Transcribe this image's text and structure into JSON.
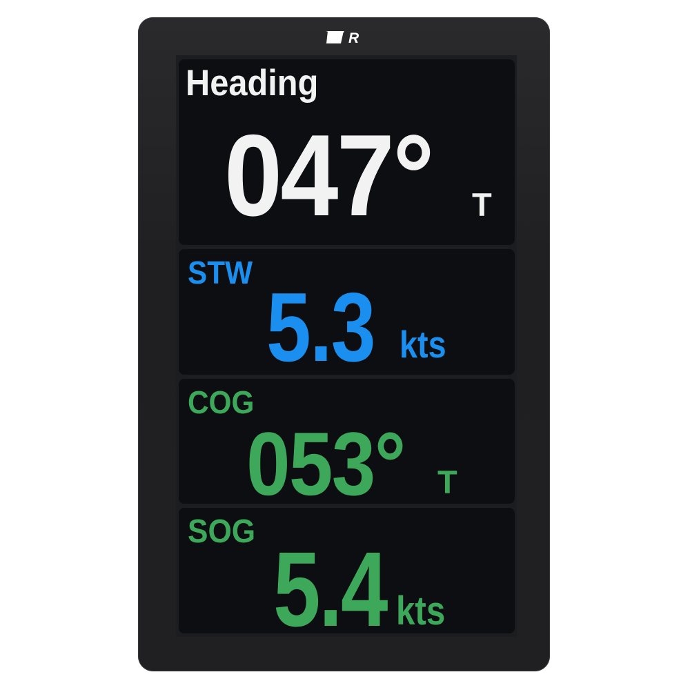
{
  "brand": {
    "logo_text": "R"
  },
  "colors": {
    "heading": "#f2f2f2",
    "stw": "#1a8ff0",
    "cog": "#3da85a",
    "sog": "#3da85a",
    "panel_bg": "#0d0e11",
    "bezel": "#222224"
  },
  "panels": {
    "heading": {
      "label": "Heading",
      "value": "047°",
      "unit": "T"
    },
    "stw": {
      "label": "STW",
      "value": "5.3",
      "unit": "kts"
    },
    "cog": {
      "label": "COG",
      "value": "053°",
      "unit": "T"
    },
    "sog": {
      "label": "SOG",
      "value": "5.4",
      "unit": "kts"
    }
  }
}
